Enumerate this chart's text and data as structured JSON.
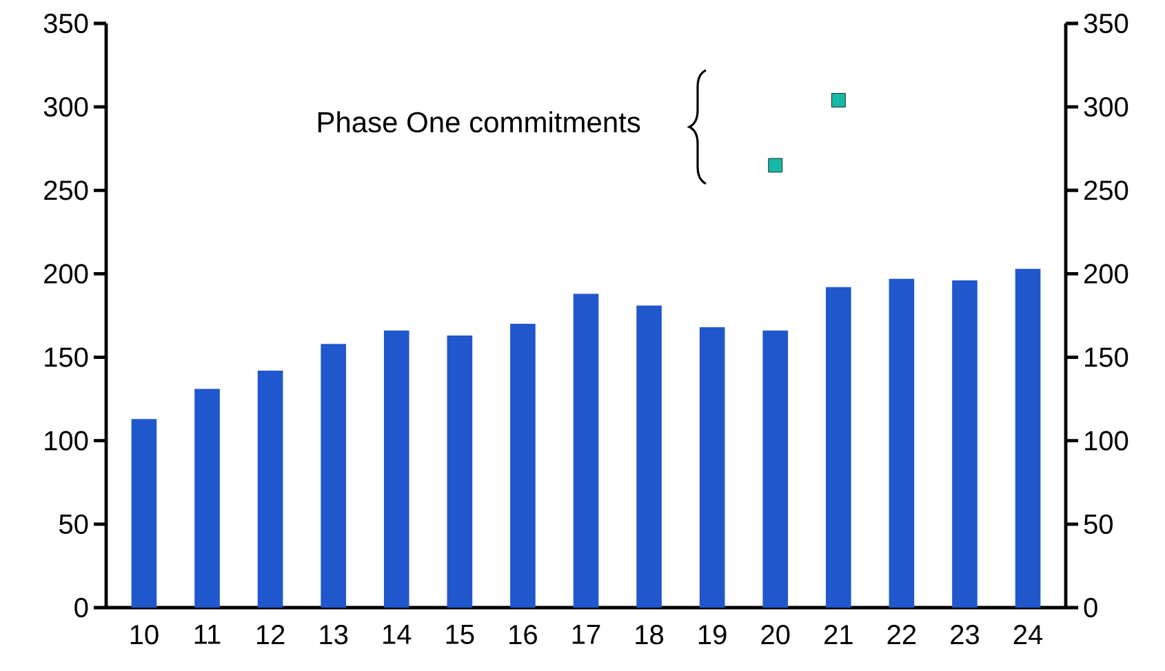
{
  "chart_data": {
    "type": "bar",
    "categories": [
      "10",
      "11",
      "12",
      "13",
      "14",
      "15",
      "16",
      "17",
      "18",
      "19",
      "20",
      "21",
      "22",
      "23",
      "24"
    ],
    "series": [
      {
        "color": "#2157cc",
        "values": [
          113,
          131,
          142,
          158,
          166,
          163,
          170,
          188,
          181,
          168,
          166,
          192,
          197,
          196,
          203
        ]
      },
      {
        "type": "scatter",
        "marker": "square",
        "color": "#17b8a6",
        "values": [
          null,
          null,
          null,
          null,
          null,
          null,
          null,
          null,
          null,
          null,
          265,
          304,
          null,
          null,
          null
        ]
      }
    ],
    "ylim": [
      0,
      350
    ],
    "yticks": [
      0,
      50,
      100,
      150,
      200,
      250,
      300,
      350
    ],
    "y2lim": [
      0,
      350
    ],
    "y2ticks": [
      0,
      50,
      100,
      150,
      200,
      250,
      300,
      350
    ],
    "annotations": [
      "Phase One commitments"
    ],
    "grid": false
  }
}
